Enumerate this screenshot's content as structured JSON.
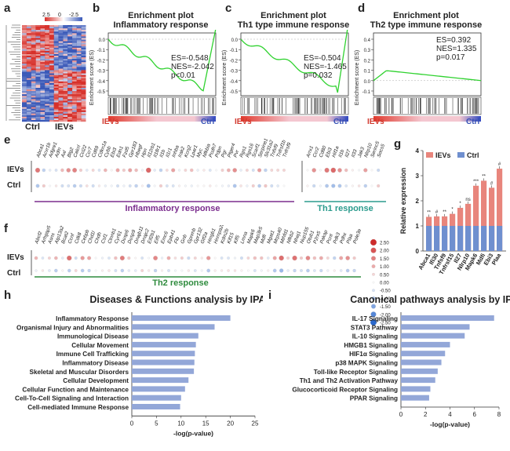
{
  "panels": {
    "a": {
      "letter": "a",
      "scale_ticks": [
        "2.5",
        "0",
        "-2.5"
      ],
      "col_labels": [
        "Ctrl",
        "IEVs"
      ]
    },
    "b": {
      "letter": "b",
      "title1": "Enrichment plot",
      "title2": "Inflammatory response",
      "es": "ES=-0.548",
      "nes": "NES=-2.042",
      "p": "p<0.01",
      "left": "IEVs",
      "right": "Ctrl"
    },
    "c": {
      "letter": "c",
      "title1": "Enrichment plot",
      "title2": "Th1 type immune response",
      "es": "ES=-0.504",
      "nes": "NES=-1.465",
      "p": "p=0.032",
      "left": "IEVs",
      "right": "Ctrl"
    },
    "d": {
      "letter": "d",
      "title1": "Enrichment plot",
      "title2": "Th2 type immune response",
      "es": "ES=0.392",
      "nes": "NES=1.335",
      "p": "p=0.017",
      "left": "IEVs",
      "right": "Ctrl"
    },
    "e": {
      "letter": "e",
      "row1": "IEVs",
      "row2": "Ctrl",
      "section1": "Inflammatory response",
      "section2": "Th1 response"
    },
    "f": {
      "letter": "f",
      "row1": "IEVs",
      "row2": "Ctrl",
      "section": "Th2 response"
    },
    "g": {
      "letter": "g"
    },
    "h": {
      "letter": "h"
    },
    "i": {
      "letter": "i"
    }
  },
  "es_axis_label": "Enrichment score (ES)",
  "es_ticks_b": [
    "0.0",
    "-0.1",
    "-0.2",
    "-0.3",
    "-0.4",
    "-0.5"
  ],
  "es_ticks_c": [
    "0.0",
    "-0.1",
    "-0.2",
    "-0.3",
    "-0.4",
    "-0.5"
  ],
  "es_ticks_d": [
    "0.4",
    "0.3",
    "0.2",
    "0.1",
    "0.0",
    "-0.1"
  ],
  "genes_e1": [
    "Abca1",
    "Acvr1b",
    "Adgre1",
    "Adm",
    "Axl",
    "Btg2",
    "Calcrl",
    "Ccl22",
    "Ccr7",
    "Cd69",
    "Cdkn1a",
    "Cybb",
    "Ebi3",
    "Edn1",
    "Fzd5",
    "Gpr183",
    "Hbegf",
    "Hpn",
    "Il12rb1",
    "Il18r1",
    "Il1b",
    "Il1r1",
    "Inhba",
    "Irak2",
    "Kcnj2",
    "Lpar1",
    "Myc",
    "Nfkbia",
    "Pcdh7",
    "Pdpn",
    "Pgr",
    "Ptger4",
    "Pvr",
    "Rgs1",
    "Rgs16",
    "Scarf1",
    "Serpine1",
    "Slc31a2",
    "Tnfsf9",
    "Tnfrsf1b",
    "Tnfrsf9"
  ],
  "genes_e2": [
    "Arrx1",
    "Ccr2",
    "Cd80",
    "Ebi3",
    "Hif1a",
    "Il1b",
    "Il27",
    "Il33",
    "Jak3",
    "Nlrp10",
    "Serinc5",
    "Socs5"
  ],
  "genes_f": [
    "Abcf2",
    "Arhgap5",
    "Asns",
    "Atp13a2",
    "Bcat2",
    "Ccnf",
    "Cdk8",
    "Cebpb",
    "Chd1l",
    "Chdh",
    "Csf1",
    "Ctnnb1",
    "Cyr61",
    "Dusp6",
    "Dusp9",
    "Dnajb11",
    "Dnajc2",
    "Eif2b1",
    "Eif5",
    "Emc6",
    "Epb41",
    "Flo",
    "Gnb",
    "Gpnmb",
    "Gpr132",
    "Gtf2a",
    "Hmgb1",
    "Hnrnpa2b1",
    "Kdm2b",
    "Klf15",
    "Klf5",
    "Lmna",
    "Mapk6",
    "Map3k5",
    "Mdfi",
    "Mgat1",
    "Mrps40",
    "Mthfd1",
    "Nfkb2",
    "Nhej1",
    "Nup155",
    "Otub1",
    "P2rx5",
    "Pakap",
    "Pcnt",
    "Pdk3",
    "Pdhx",
    "Plaa",
    "Pole3e"
  ],
  "heat_scale_ticks": [
    "2.50",
    "2.00",
    "1.50",
    "1.00",
    "0.50",
    "0.00",
    "-0.50",
    "-1.00",
    "-1.50",
    "-2.00",
    "-2.50"
  ],
  "chart_data": [
    {
      "panel": "g",
      "type": "bar",
      "ylabel": "Relative expression",
      "ylim": [
        0,
        4
      ],
      "yticks": [
        "0",
        "1",
        "2",
        "3",
        "4"
      ],
      "categories": [
        "Abca1",
        "Ifi30",
        "Tnfsf9",
        "Tnfrsf15",
        "Il27",
        "Nlrp10",
        "Mapk6",
        "Mdfi",
        "Ebi3",
        "Plaa"
      ],
      "series": [
        {
          "name": "IEVs",
          "color": "#e8857c",
          "values": [
            1.36,
            1.38,
            1.38,
            1.48,
            1.72,
            1.88,
            2.6,
            2.8,
            2.52,
            3.28
          ]
        },
        {
          "name": "Ctrl",
          "color": "#6f8fcf",
          "values": [
            1.0,
            1.0,
            1.0,
            1.0,
            1.0,
            1.0,
            1.0,
            1.0,
            1.0,
            1.0
          ]
        }
      ],
      "significance": [
        "**",
        "#",
        "**",
        "*",
        "*",
        "ns",
        "***",
        "**",
        "#",
        "#"
      ],
      "legend": "top-left"
    },
    {
      "panel": "h",
      "type": "bar",
      "orientation": "horizontal",
      "title": "Diseases & Functions analysis by IPA",
      "xlabel": "-log(p-value)",
      "xlim": [
        0,
        25
      ],
      "xticks": [
        "0",
        "5",
        "10",
        "15",
        "20",
        "25"
      ],
      "categories": [
        "Inflammatory Response",
        "Organismal Injury and Abnormalities",
        "Immunological Disease",
        "Cellular Movement",
        "Immune Cell Trafficking",
        "Inflammatory Disease",
        "Skeletal and Muscular Disorders",
        "Cellular Development",
        "Cellular Function and Maintenance",
        "Cell-To-Cell Signaling and Interaction",
        "Cell-mediated Immune Response"
      ],
      "values": [
        20,
        16.8,
        13.5,
        13.0,
        12.8,
        12.7,
        12.6,
        11.5,
        10.8,
        10.0,
        9.8
      ]
    },
    {
      "panel": "i",
      "type": "bar",
      "orientation": "horizontal",
      "title": "Canonical pathways analysis by IPA",
      "xlabel": "-log(p-value)",
      "xlim": [
        0,
        8
      ],
      "xticks": [
        "0",
        "2",
        "4",
        "6",
        "8"
      ],
      "categories": [
        "IL-17 Signaling",
        "STAT3 Pathway",
        "IL-10 Signaling",
        "HMGB1 Signaling",
        "HIF1α Signaling",
        "p38 MAPK Signaling",
        "Toll-like Receptor Signaling",
        "Th1 and Th2 Activation Pathway",
        "Glucocorticoid Receptor Signaling",
        "PPAR Signaling"
      ],
      "values": [
        7.6,
        5.6,
        5.2,
        4.0,
        3.6,
        3.3,
        3.0,
        2.8,
        2.4,
        2.3
      ]
    }
  ]
}
